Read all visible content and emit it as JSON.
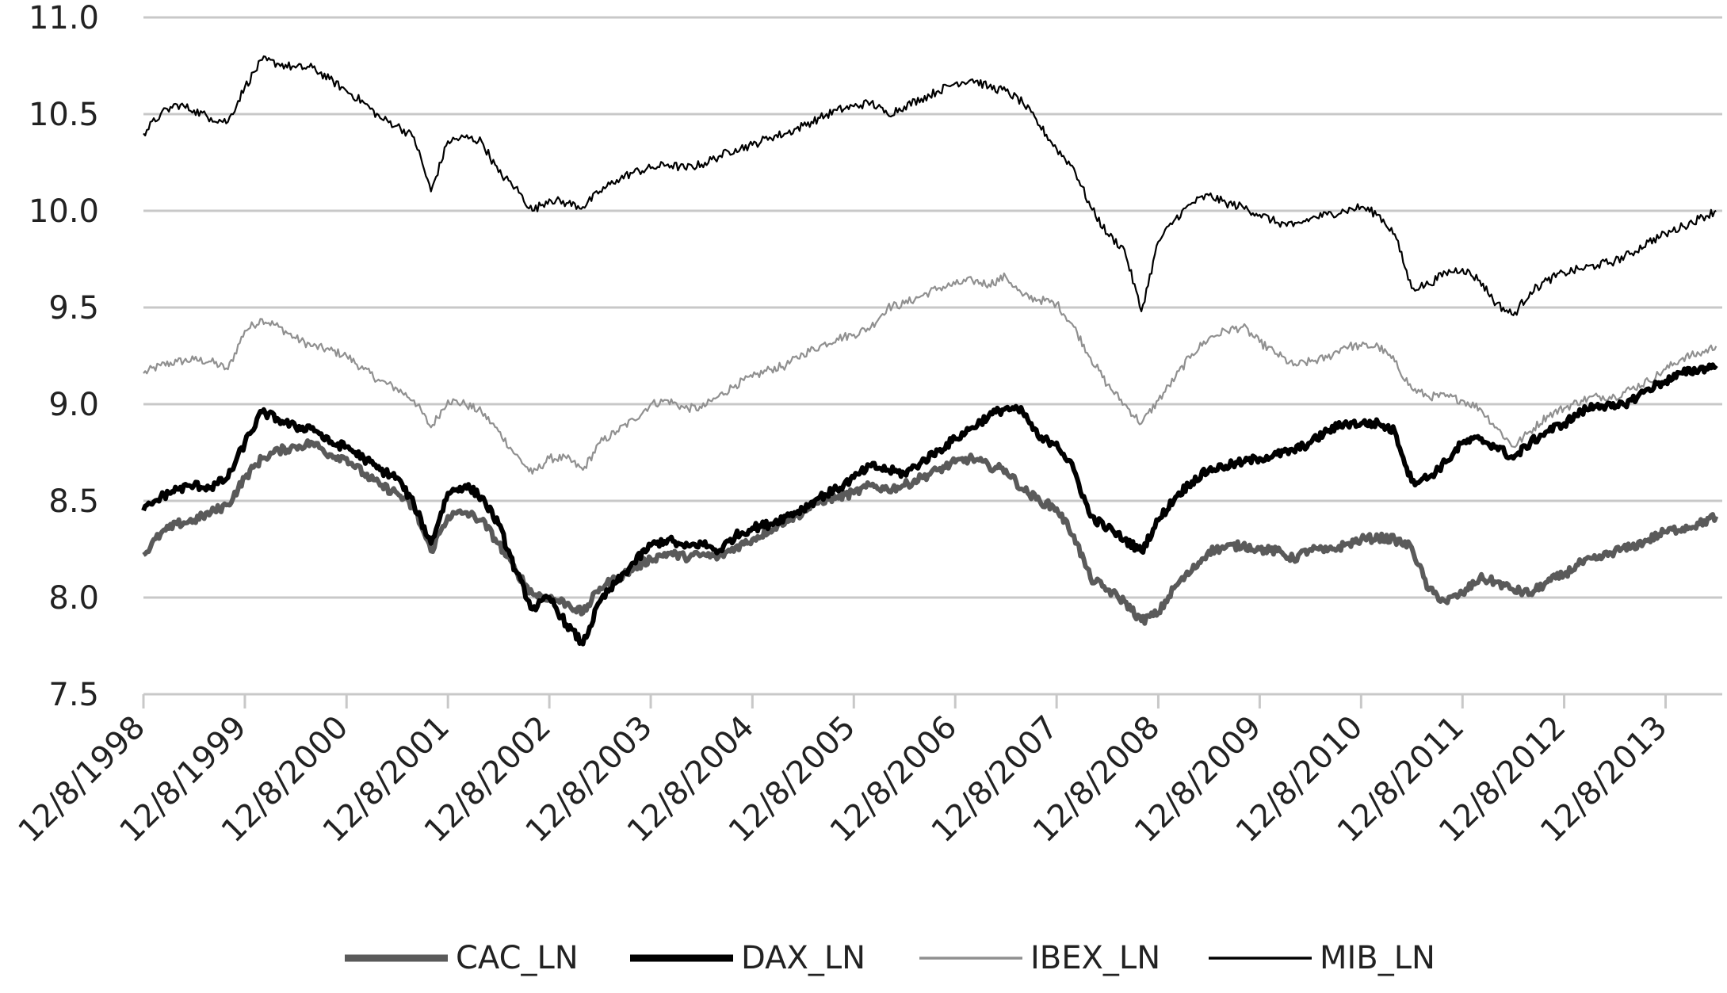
{
  "chart_data": {
    "type": "line",
    "title": "",
    "xlabel": "",
    "ylabel": "",
    "ylim": [
      7.5,
      11.0
    ],
    "y_ticks": [
      "7.5",
      "8.0",
      "8.5",
      "9.0",
      "9.5",
      "10.0",
      "10.5",
      "11.0"
    ],
    "x_tick_labels": [
      "12/8/1998",
      "12/8/1999",
      "12/8/2000",
      "12/8/2001",
      "12/8/2002",
      "12/8/2003",
      "12/8/2004",
      "12/8/2005",
      "12/8/2006",
      "12/8/2007",
      "12/8/2008",
      "12/8/2009",
      "12/8/2010",
      "12/8/2011",
      "12/8/2012",
      "12/8/2013"
    ],
    "xlim": [
      "12/8/1998",
      "6/30/2014"
    ],
    "grid": "horizontal",
    "legend_position": "bottom",
    "x": [
      "12/8/1998",
      "2/8/1999",
      "4/8/1999",
      "6/8/1999",
      "8/8/1999",
      "10/8/1999",
      "12/8/1999",
      "2/8/2000",
      "4/8/2000",
      "6/8/2000",
      "8/8/2000",
      "10/8/2000",
      "12/8/2000",
      "2/8/2001",
      "4/8/2001",
      "6/8/2001",
      "8/8/2001",
      "10/8/2001",
      "12/8/2001",
      "2/8/2002",
      "4/8/2002",
      "6/8/2002",
      "8/8/2002",
      "10/8/2002",
      "12/8/2002",
      "2/8/2003",
      "4/8/2003",
      "6/8/2003",
      "8/8/2003",
      "10/8/2003",
      "12/8/2003",
      "2/8/2004",
      "4/8/2004",
      "6/8/2004",
      "8/8/2004",
      "10/8/2004",
      "12/8/2004",
      "2/8/2005",
      "4/8/2005",
      "6/8/2005",
      "8/8/2005",
      "10/8/2005",
      "12/8/2005",
      "2/8/2006",
      "4/8/2006",
      "6/8/2006",
      "8/8/2006",
      "10/8/2006",
      "12/8/2006",
      "2/8/2007",
      "4/8/2007",
      "6/8/2007",
      "8/8/2007",
      "10/8/2007",
      "12/8/2007",
      "2/8/2008",
      "4/8/2008",
      "6/8/2008",
      "8/8/2008",
      "10/8/2008",
      "12/8/2008",
      "2/8/2009",
      "4/8/2009",
      "6/8/2009",
      "8/8/2009",
      "10/8/2009",
      "12/8/2009",
      "2/8/2010",
      "4/8/2010",
      "6/8/2010",
      "8/8/2010",
      "10/8/2010",
      "12/8/2010",
      "2/8/2011",
      "4/8/2011",
      "6/8/2011",
      "8/8/2011",
      "10/8/2011",
      "12/8/2011",
      "2/8/2012",
      "4/8/2012",
      "6/8/2012",
      "8/8/2012",
      "10/8/2012",
      "12/8/2012",
      "2/8/2013",
      "4/8/2013",
      "6/8/2013",
      "8/8/2013",
      "10/8/2013",
      "12/8/2013",
      "2/8/2014",
      "4/8/2014",
      "6/8/2014"
    ],
    "series": [
      {
        "name": "CAC_LN",
        "color": "#5a5a5a",
        "stroke_style": "thick",
        "values": [
          8.22,
          8.33,
          8.38,
          8.4,
          8.44,
          8.48,
          8.62,
          8.72,
          8.76,
          8.78,
          8.8,
          8.74,
          8.72,
          8.64,
          8.58,
          8.54,
          8.46,
          8.24,
          8.42,
          8.44,
          8.4,
          8.28,
          8.14,
          8.02,
          8.0,
          7.97,
          7.92,
          8.05,
          8.1,
          8.15,
          8.2,
          8.23,
          8.21,
          8.22,
          8.21,
          8.26,
          8.3,
          8.35,
          8.4,
          8.44,
          8.5,
          8.52,
          8.54,
          8.58,
          8.56,
          8.58,
          8.62,
          8.66,
          8.7,
          8.72,
          8.68,
          8.66,
          8.56,
          8.5,
          8.46,
          8.32,
          8.1,
          8.04,
          7.98,
          7.88,
          7.92,
          8.06,
          8.14,
          8.24,
          8.26,
          8.27,
          8.25,
          8.24,
          8.2,
          8.25,
          8.24,
          8.27,
          8.3,
          8.31,
          8.3,
          8.26,
          8.04,
          7.98,
          8.02,
          8.1,
          8.08,
          8.04,
          8.02,
          8.08,
          8.12,
          8.18,
          8.2,
          8.24,
          8.26,
          8.3,
          8.34,
          8.36,
          8.38,
          8.42
        ]
      },
      {
        "name": "DAX_LN",
        "color": "#000000",
        "stroke_style": "thick",
        "values": [
          8.45,
          8.52,
          8.56,
          8.58,
          8.57,
          8.62,
          8.8,
          8.96,
          8.92,
          8.88,
          8.88,
          8.8,
          8.78,
          8.72,
          8.66,
          8.62,
          8.48,
          8.28,
          8.54,
          8.58,
          8.52,
          8.38,
          8.14,
          7.94,
          8.0,
          7.86,
          7.76,
          7.98,
          8.08,
          8.18,
          8.27,
          8.3,
          8.26,
          8.28,
          8.24,
          8.32,
          8.36,
          8.38,
          8.42,
          8.46,
          8.52,
          8.56,
          8.62,
          8.68,
          8.66,
          8.64,
          8.7,
          8.76,
          8.82,
          8.88,
          8.94,
          8.98,
          8.96,
          8.82,
          8.8,
          8.66,
          8.42,
          8.36,
          8.3,
          8.24,
          8.4,
          8.52,
          8.6,
          8.66,
          8.68,
          8.7,
          8.72,
          8.74,
          8.76,
          8.8,
          8.86,
          8.9,
          8.9,
          8.9,
          8.86,
          8.6,
          8.62,
          8.7,
          8.8,
          8.82,
          8.78,
          8.72,
          8.8,
          8.86,
          8.9,
          8.96,
          9.0,
          8.98,
          9.02,
          9.08,
          9.12,
          9.16,
          9.18,
          9.2
        ]
      },
      {
        "name": "IBEX_LN",
        "color": "#909090",
        "stroke_style": "thin",
        "values": [
          9.16,
          9.2,
          9.22,
          9.23,
          9.22,
          9.18,
          9.38,
          9.44,
          9.4,
          9.34,
          9.3,
          9.28,
          9.25,
          9.18,
          9.12,
          9.08,
          9.02,
          8.88,
          9.02,
          9.0,
          8.96,
          8.86,
          8.74,
          8.64,
          8.72,
          8.72,
          8.66,
          8.8,
          8.86,
          8.92,
          9.0,
          9.02,
          8.98,
          8.98,
          9.04,
          9.1,
          9.14,
          9.18,
          9.2,
          9.26,
          9.3,
          9.34,
          9.36,
          9.4,
          9.5,
          9.52,
          9.56,
          9.6,
          9.62,
          9.64,
          9.62,
          9.66,
          9.56,
          9.54,
          9.52,
          9.4,
          9.24,
          9.1,
          9.0,
          8.9,
          9.02,
          9.14,
          9.26,
          9.34,
          9.38,
          9.4,
          9.32,
          9.26,
          9.2,
          9.22,
          9.24,
          9.3,
          9.3,
          9.3,
          9.22,
          9.08,
          9.04,
          9.04,
          9.02,
          8.98,
          8.88,
          8.78,
          8.86,
          8.94,
          8.98,
          9.02,
          9.04,
          9.04,
          9.08,
          9.12,
          9.18,
          9.24,
          9.26,
          9.3
        ]
      },
      {
        "name": "MIB_LN",
        "color": "#000000",
        "stroke_style": "thin",
        "values": [
          10.4,
          10.5,
          10.55,
          10.52,
          10.48,
          10.46,
          10.64,
          10.78,
          10.76,
          10.74,
          10.74,
          10.68,
          10.62,
          10.56,
          10.48,
          10.44,
          10.38,
          10.1,
          10.36,
          10.38,
          10.36,
          10.2,
          10.12,
          10.0,
          10.06,
          10.04,
          10.02,
          10.1,
          10.16,
          10.2,
          10.22,
          10.24,
          10.22,
          10.24,
          10.28,
          10.32,
          10.34,
          10.38,
          10.4,
          10.44,
          10.48,
          10.52,
          10.54,
          10.56,
          10.5,
          10.54,
          10.58,
          10.62,
          10.66,
          10.68,
          10.64,
          10.62,
          10.56,
          10.44,
          10.32,
          10.22,
          10.02,
          9.88,
          9.8,
          9.48,
          9.84,
          9.96,
          10.04,
          10.08,
          10.04,
          10.02,
          9.98,
          9.94,
          9.92,
          9.96,
          9.98,
          10.0,
          10.02,
          9.98,
          9.88,
          9.6,
          9.62,
          9.68,
          9.7,
          9.64,
          9.52,
          9.46,
          9.58,
          9.64,
          9.68,
          9.7,
          9.72,
          9.74,
          9.78,
          9.84,
          9.88,
          9.92,
          9.96,
          10.0
        ]
      }
    ]
  }
}
